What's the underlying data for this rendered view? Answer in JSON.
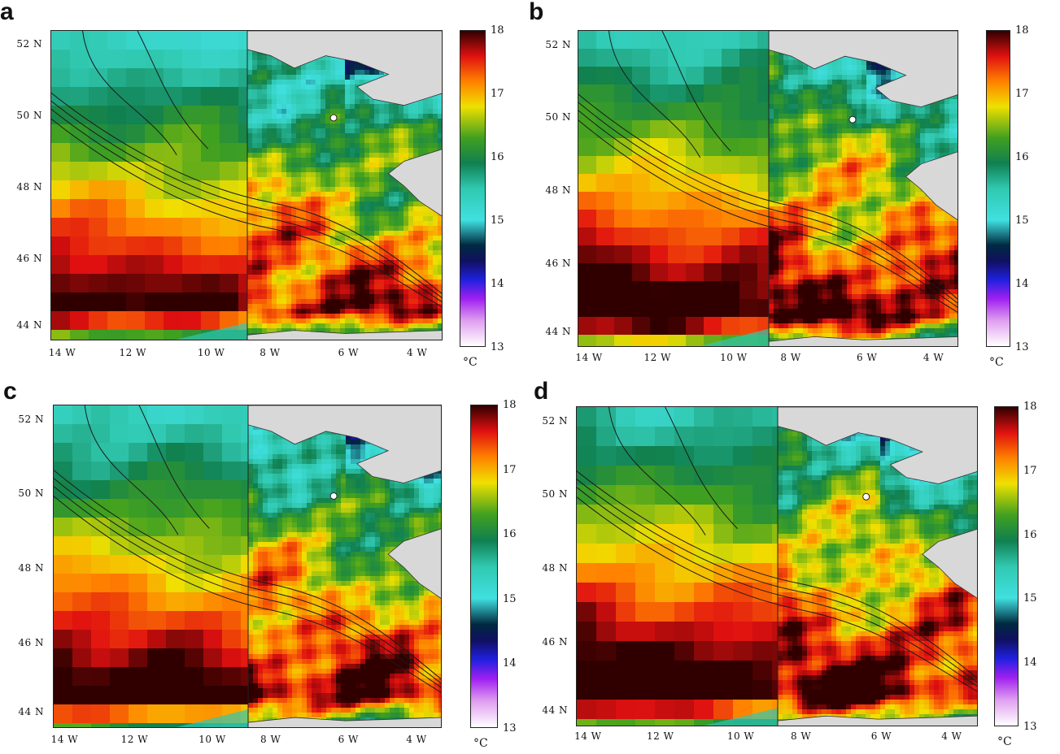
{
  "colorbar": {
    "ticks": [
      "18",
      "17",
      "16",
      "15",
      "14",
      "13"
    ],
    "min": 13,
    "max": 18,
    "unit": "°C",
    "stops": [
      {
        "t": 13.0,
        "c": "#ffffff"
      },
      {
        "t": 13.4,
        "c": "#e0a0f0"
      },
      {
        "t": 13.75,
        "c": "#a020f0"
      },
      {
        "t": 14.05,
        "c": "#2020e0"
      },
      {
        "t": 14.35,
        "c": "#101060"
      },
      {
        "t": 14.6,
        "c": "#002a40"
      },
      {
        "t": 15.0,
        "c": "#40e0e0"
      },
      {
        "t": 15.5,
        "c": "#30c8b0"
      },
      {
        "t": 15.9,
        "c": "#108050"
      },
      {
        "t": 16.3,
        "c": "#40a020"
      },
      {
        "t": 16.8,
        "c": "#f0e000"
      },
      {
        "t": 17.2,
        "c": "#ff8000"
      },
      {
        "t": 17.6,
        "c": "#e01010"
      },
      {
        "t": 18.0,
        "c": "#300000"
      }
    ]
  },
  "axes": {
    "lat_labels": [
      "52 N",
      "50 N",
      "48 N",
      "46 N",
      "44 N"
    ],
    "lon_labels": [
      "14 W",
      "12 W",
      "10 W",
      "8 W",
      "6 W",
      "4 W"
    ]
  },
  "colors": {
    "land": "#d8d8d8",
    "contour": "#1a1a1a"
  },
  "panels": [
    {
      "id": "a",
      "letter": "a",
      "warmth": 0.0
    },
    {
      "id": "b",
      "letter": "b",
      "warmth": 0.2
    },
    {
      "id": "c",
      "letter": "c",
      "warmth": 0.1
    },
    {
      "id": "d",
      "letter": "d",
      "warmth": 0.25
    }
  ]
}
